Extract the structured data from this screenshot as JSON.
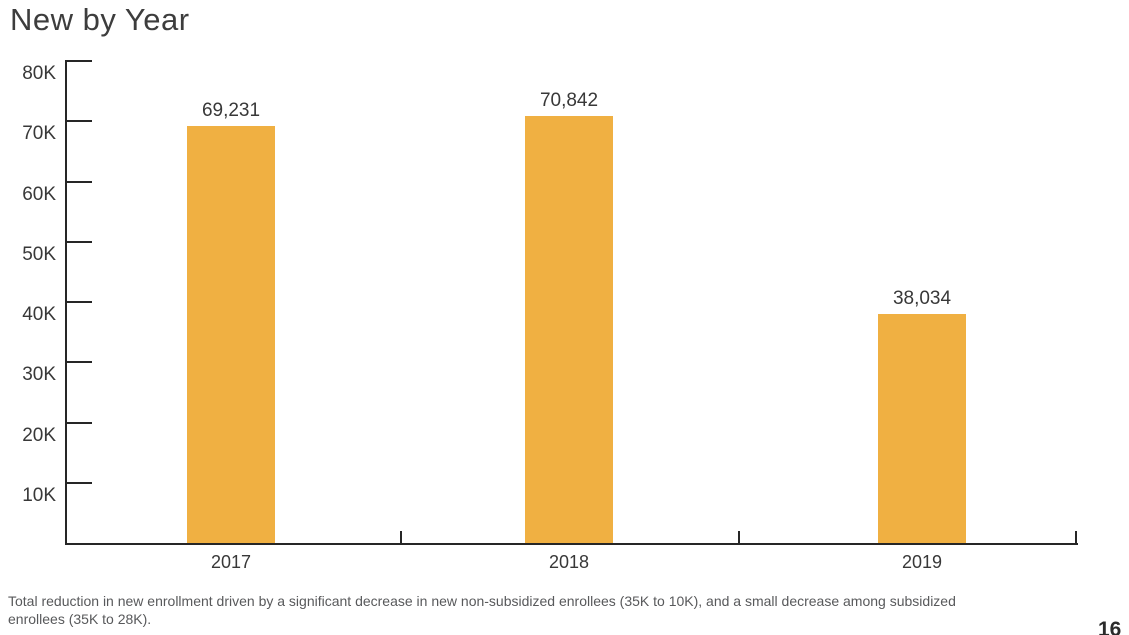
{
  "page": {
    "title": "New by Year",
    "footnote_line1": "Total reduction in new enrollment driven by a significant decrease in new non-subsidized enrollees (35K to 10K), and a small decrease among subsidized",
    "footnote_line2": "enrollees (35K to 28K).",
    "page_number": "16"
  },
  "colors": {
    "bar": "#F0B042",
    "axis": "#262626",
    "label_text": "#383838",
    "footnote_text": "#58595b"
  },
  "chart_data": {
    "type": "bar",
    "title": "New by Year",
    "categories": [
      "2017",
      "2018",
      "2019"
    ],
    "values": [
      69231,
      70842,
      38034
    ],
    "value_labels": [
      "69,231",
      "70,842",
      "38,034"
    ],
    "xlabel": "",
    "ylabel": "",
    "ylim": [
      0,
      80000
    ],
    "y_tick_interval": 10000,
    "y_ticks": [
      {
        "value": 80000,
        "label": "80K"
      },
      {
        "value": 70000,
        "label": "70K"
      },
      {
        "value": 60000,
        "label": "60K"
      },
      {
        "value": 50000,
        "label": "50K"
      },
      {
        "value": 40000,
        "label": "40K"
      },
      {
        "value": 30000,
        "label": "30K"
      },
      {
        "value": 20000,
        "label": "20K"
      },
      {
        "value": 10000,
        "label": "10K"
      }
    ],
    "grid": false,
    "legend": "none",
    "bar_color": "#F0B042"
  }
}
